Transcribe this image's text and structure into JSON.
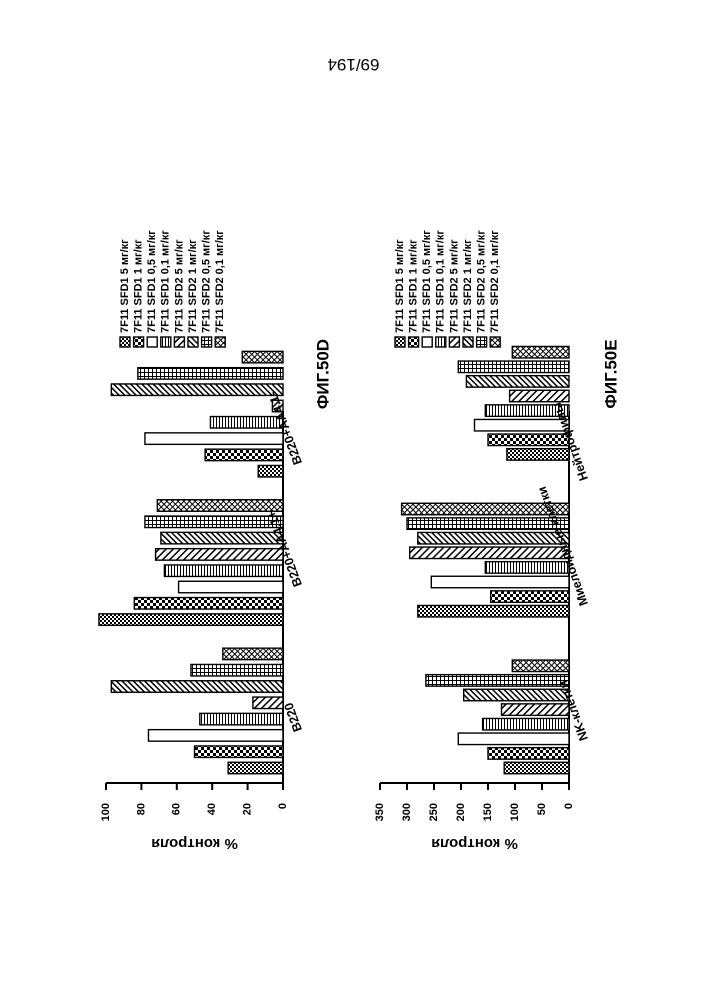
{
  "page": {
    "number": "69/194"
  },
  "chart_data": [
    {
      "type": "bar",
      "figure_label": "ФИГ.50D",
      "ylabel": "% контроля",
      "ylim": [
        0,
        100
      ],
      "yticks": [
        0,
        20,
        40,
        60,
        80,
        100
      ],
      "categories": [
        "B220",
        "B220+AA4.1+",
        "B220+AA4.1-"
      ],
      "series": [
        {
          "name": "7F11 SFD1 5 мг/кг",
          "values": [
            31,
            104,
            14
          ]
        },
        {
          "name": "7F11 SFD1 1 мг/кг",
          "values": [
            50,
            84,
            44
          ]
        },
        {
          "name": "7F11 SFD1 0,5 мг/кг",
          "values": [
            76,
            59,
            78
          ]
        },
        {
          "name": "7F11 SFD1 0,1 мг/кг",
          "values": [
            47,
            67,
            41
          ]
        },
        {
          "name": "7F11 SFD2 5 мг/кг",
          "values": [
            17,
            72,
            6
          ]
        },
        {
          "name": "7F11 SFD2 1 мг/кг",
          "values": [
            97,
            69,
            97
          ]
        },
        {
          "name": "7F11 SFD2 0,5 мг/кг",
          "values": [
            52,
            78,
            82
          ]
        },
        {
          "name": "7F11 SFD2 0,1 мг/кг",
          "values": [
            34,
            71,
            23
          ]
        }
      ]
    },
    {
      "type": "bar",
      "figure_label": "ФИГ.50E",
      "ylabel": "% контроля",
      "ylim": [
        0,
        350
      ],
      "yticks": [
        0,
        50,
        100,
        150,
        200,
        250,
        300,
        350
      ],
      "categories": [
        "NK-клетки",
        "Миелоидные клетки",
        "Нейтрофилы"
      ],
      "series": [
        {
          "name": "7F11 SFD1 5 мг/кг",
          "values": [
            120,
            280,
            115
          ]
        },
        {
          "name": "7F11 SFD1 1 мг/кг",
          "values": [
            150,
            145,
            150
          ]
        },
        {
          "name": "7F11 SFD1 0,5 мг/кг",
          "values": [
            205,
            255,
            175
          ]
        },
        {
          "name": "7F11 SFD1 0,1 мг/кг",
          "values": [
            160,
            155,
            155
          ]
        },
        {
          "name": "7F11 SFD2 5 мг/кг",
          "values": [
            125,
            295,
            110
          ]
        },
        {
          "name": "7F11 SFD2 1 мг/кг",
          "values": [
            195,
            280,
            190
          ]
        },
        {
          "name": "7F11 SFD2 0,5 мг/кг",
          "values": [
            265,
            300,
            205
          ]
        },
        {
          "name": "7F11 SFD2 0,1 мг/кг",
          "values": [
            105,
            310,
            105
          ]
        }
      ]
    }
  ]
}
